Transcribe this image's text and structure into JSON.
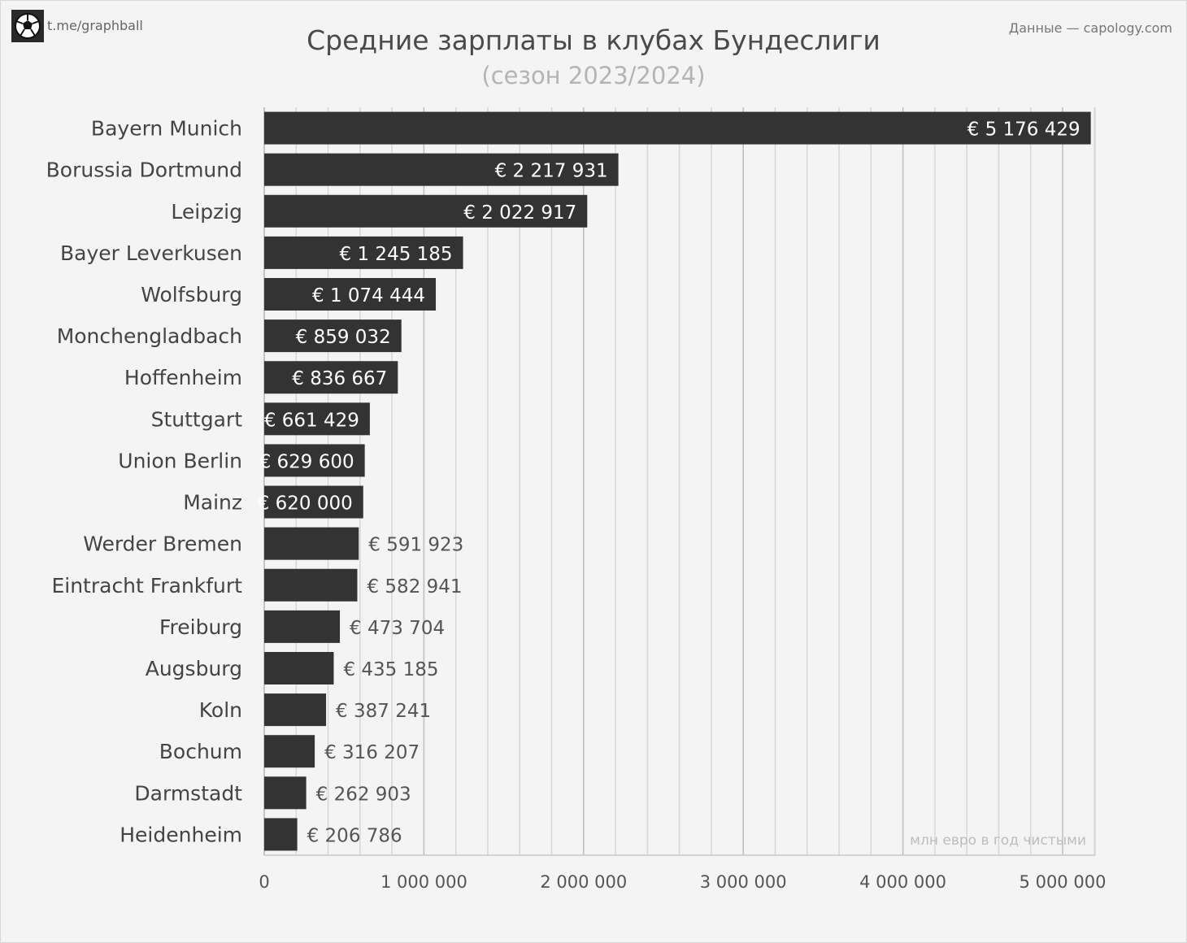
{
  "header": {
    "brand": "t.me/graphball",
    "source": "Данные — capology.com",
    "title": "Средние зарплаты в клубах Бундеслиги",
    "subtitle": "(сезон 2023/2024)"
  },
  "colors": {
    "background": "#f4f4f4",
    "bar": "#333333",
    "grid": "#cccccc",
    "label_inside": "#ffffff",
    "label_outside": "#555555"
  },
  "icons": {
    "logo": "soccer-ball-icon"
  },
  "chart_data": {
    "type": "bar",
    "orientation": "horizontal",
    "categories": [
      "Bayern Munich",
      "Borussia Dortmund",
      "Leipzig",
      "Bayer Leverkusen",
      "Wolfsburg",
      "Monchengladbach",
      "Hoffenheim",
      "Stuttgart",
      "Union Berlin",
      "Mainz",
      "Werder Bremen",
      "Eintracht Frankfurt",
      "Freiburg",
      "Augsburg",
      "Koln",
      "Bochum",
      "Darmstadt",
      "Heidenheim"
    ],
    "values": [
      5176429,
      2217931,
      2022917,
      1245185,
      1074444,
      859032,
      836667,
      661429,
      629600,
      620000,
      591923,
      582941,
      473704,
      435185,
      387241,
      316207,
      262903,
      206786
    ],
    "data_labels": [
      "€ 5 176 429",
      "€ 2 217 931",
      "€ 2 022 917",
      "€ 1 245 185",
      "€ 1 074 444",
      "€ 859 032",
      "€ 836 667",
      "€ 661 429",
      "€ 629 600",
      "€ 620 000",
      "€ 591 923",
      "€ 582 941",
      "€ 473 704",
      "€ 435 185",
      "€ 387 241",
      "€ 316 207",
      "€ 262 903",
      "€ 206 786"
    ],
    "xlim": [
      0,
      5200000
    ],
    "x_ticks": [
      0,
      1000000,
      2000000,
      3000000,
      4000000,
      5000000
    ],
    "x_tick_labels": [
      "0",
      "1 000 000",
      "2 000 000",
      "3 000 000",
      "4 000 000",
      "5 000 000"
    ],
    "minor_grid_step": 200000,
    "units_note": "млн евро в год чистыми",
    "grid": true,
    "legend": "none"
  }
}
